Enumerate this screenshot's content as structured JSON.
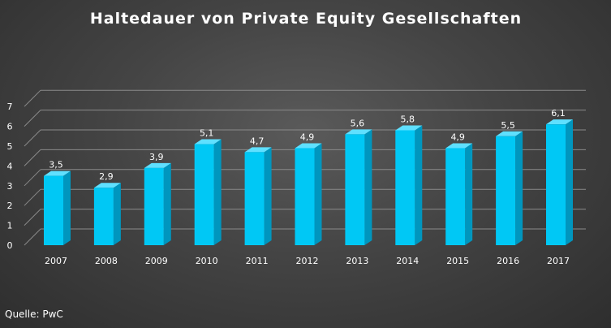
{
  "chart_data": {
    "type": "bar",
    "title": "Haltedauer von Private Equity Gesellschaften",
    "xlabel": "",
    "ylabel": "",
    "categories": [
      "2007",
      "2008",
      "2009",
      "2010",
      "2011",
      "2012",
      "2013",
      "2014",
      "2015",
      "2016",
      "2017"
    ],
    "values": [
      3.5,
      2.9,
      3.9,
      5.1,
      4.7,
      4.9,
      5.6,
      5.8,
      4.9,
      5.5,
      6.1
    ],
    "value_labels": [
      "3,5",
      "2,9",
      "3,9",
      "5,1",
      "4,7",
      "4,9",
      "5,6",
      "5,8",
      "4,9",
      "5,5",
      "6,1"
    ],
    "ylim": [
      0,
      7
    ],
    "yticks": [
      "0",
      "1",
      "2",
      "3",
      "4",
      "5",
      "6",
      "7"
    ],
    "grid": true,
    "legend": "none",
    "colors": {
      "bar_front": "#00c8f5",
      "bar_side": "#0096be",
      "bar_top": "#5fe0ff",
      "gridline": "#8a8a8a",
      "text": "#ffffff"
    }
  },
  "source": "Quelle: PwC"
}
